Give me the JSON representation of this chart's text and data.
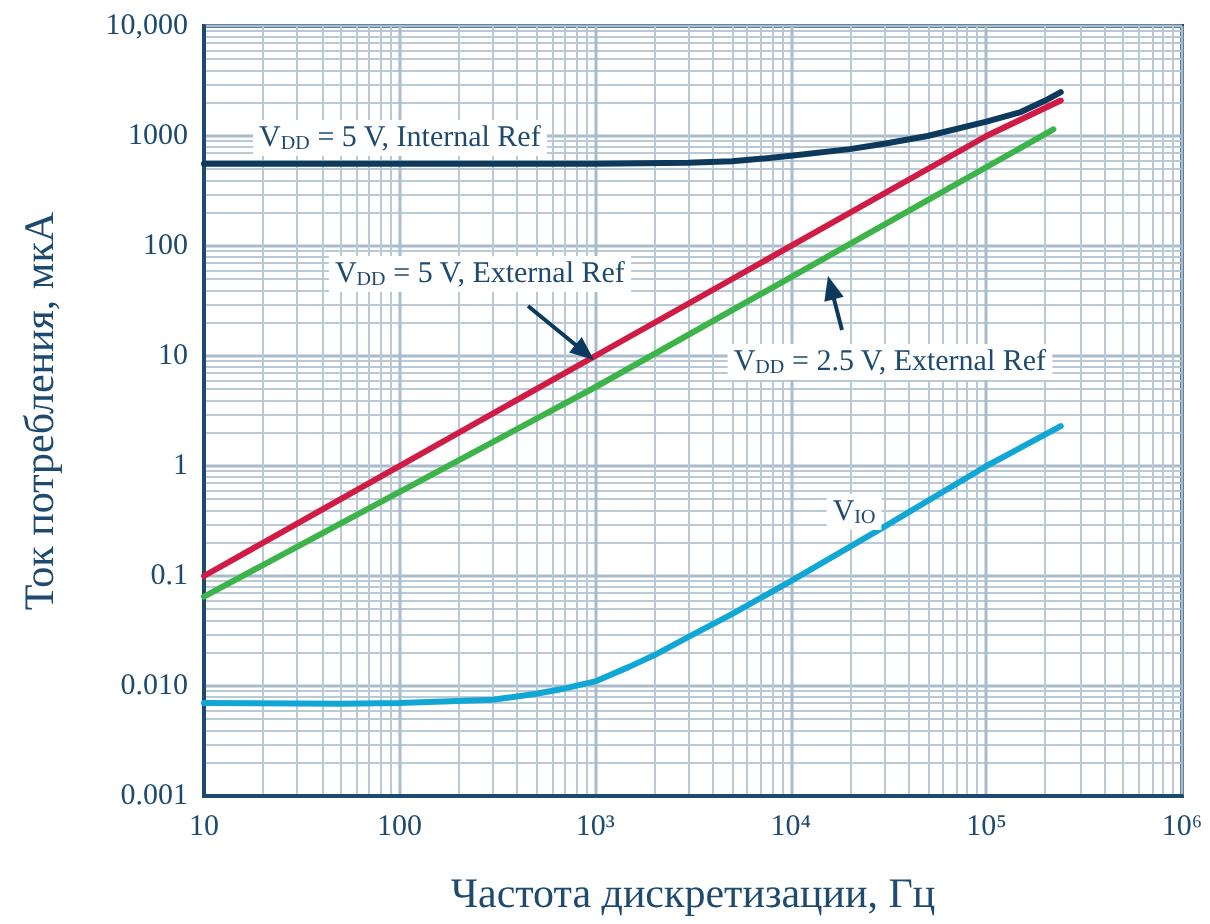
{
  "chart_data": {
    "type": "line",
    "xlabel": "Частота дискретизации, Гц",
    "ylabel": "Ток потребления, мкА",
    "log": "xy",
    "grid": true,
    "marker": "none",
    "line_style": "solid",
    "xlim": [
      10,
      1000000
    ],
    "ylim": [
      0.001,
      10000
    ],
    "xticks": [
      10,
      100,
      {
        "value": 1000,
        "label": "10³"
      },
      {
        "value": 10000,
        "label": "10⁴"
      },
      {
        "value": 100000,
        "label": "10⁵"
      },
      {
        "value": 1000000,
        "label": "10⁶"
      }
    ],
    "yticks": [
      "0.001",
      {
        "value": 0.01,
        "label": "0.010"
      },
      0.1,
      1,
      10,
      100,
      1000,
      {
        "value": 10000,
        "label": "10,000"
      }
    ],
    "series": [
      {
        "color": "#0d3a5c",
        "x": [
          10,
          1000,
          3000,
          5000,
          7000,
          10000,
          20000,
          30000,
          50000,
          100000,
          150000,
          200000,
          240000
        ],
        "values": [
          560,
          560,
          570,
          590,
          620,
          660,
          760,
          850,
          1000,
          1350,
          1650,
          2100,
          2500
        ]
      },
      {
        "color": "#d01c45",
        "x": [
          10,
          1000,
          100000,
          240000
        ],
        "values": [
          0.1,
          10,
          1000,
          2100
        ]
      },
      {
        "color": "#3cb44a",
        "x": [
          10,
          1000,
          100000,
          220000
        ],
        "values": [
          0.065,
          5.2,
          520,
          1150
        ]
      },
      {
        "color": "#11a7d4",
        "x": [
          10,
          50,
          100,
          300,
          500,
          700,
          1000,
          1500,
          2000,
          3000,
          5000,
          10000,
          30000,
          100000,
          240000
        ],
        "values": [
          0.007,
          0.0069,
          0.007,
          0.0075,
          0.0085,
          0.0095,
          0.011,
          0.015,
          0.019,
          0.028,
          0.045,
          0.09,
          0.28,
          1,
          2.3
        ]
      }
    ],
    "annotations": [
      "V$_{DD}$ = 5 V, Internal Ref",
      "V$_{DD}$ = 5 V, External Ref",
      "V$_{DD}$ = 2.5 V, External Ref",
      "V$_{IO}$"
    ]
  }
}
